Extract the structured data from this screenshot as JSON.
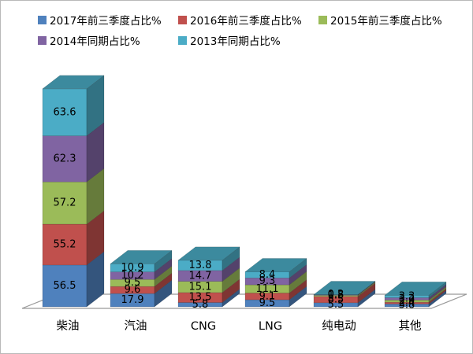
{
  "chart_data": {
    "type": "bar",
    "variant": "3d-stacked-column",
    "title": "",
    "xlabel": "",
    "ylabel": "",
    "legend_position": "top",
    "data_labels": true,
    "axis_visible": false,
    "categories": [
      "柴油",
      "汽油",
      "CNG",
      "LNG",
      "纯电动",
      "其他"
    ],
    "series": [
      {
        "name": "2017年前三季度占比%",
        "color": "#4F81BD",
        "values": [
          56.5,
          17.9,
          5.8,
          9.5,
          5.5,
          3.8
        ]
      },
      {
        "name": "2016年前三季度占比%",
        "color": "#C0504D",
        "values": [
          55.2,
          9.6,
          13.5,
          9.1,
          8.5,
          2.4
        ]
      },
      {
        "name": "2015年前三季度占比%",
        "color": "#9BBB59",
        "values": [
          57.2,
          9.5,
          15.1,
          11.1,
          1.5,
          2.9
        ]
      },
      {
        "name": "2014年同期占比%",
        "color": "#8064A2",
        "values": [
          62.3,
          10.2,
          14.7,
          9.3,
          0.8,
          3.2
        ]
      },
      {
        "name": "2013年同期占比%",
        "color": "#4BACC6",
        "values": [
          63.6,
          10.9,
          13.8,
          8.4,
          0.2,
          3.3
        ]
      }
    ],
    "floor_color": "#999999",
    "frame_color": "#b9b9b9"
  }
}
